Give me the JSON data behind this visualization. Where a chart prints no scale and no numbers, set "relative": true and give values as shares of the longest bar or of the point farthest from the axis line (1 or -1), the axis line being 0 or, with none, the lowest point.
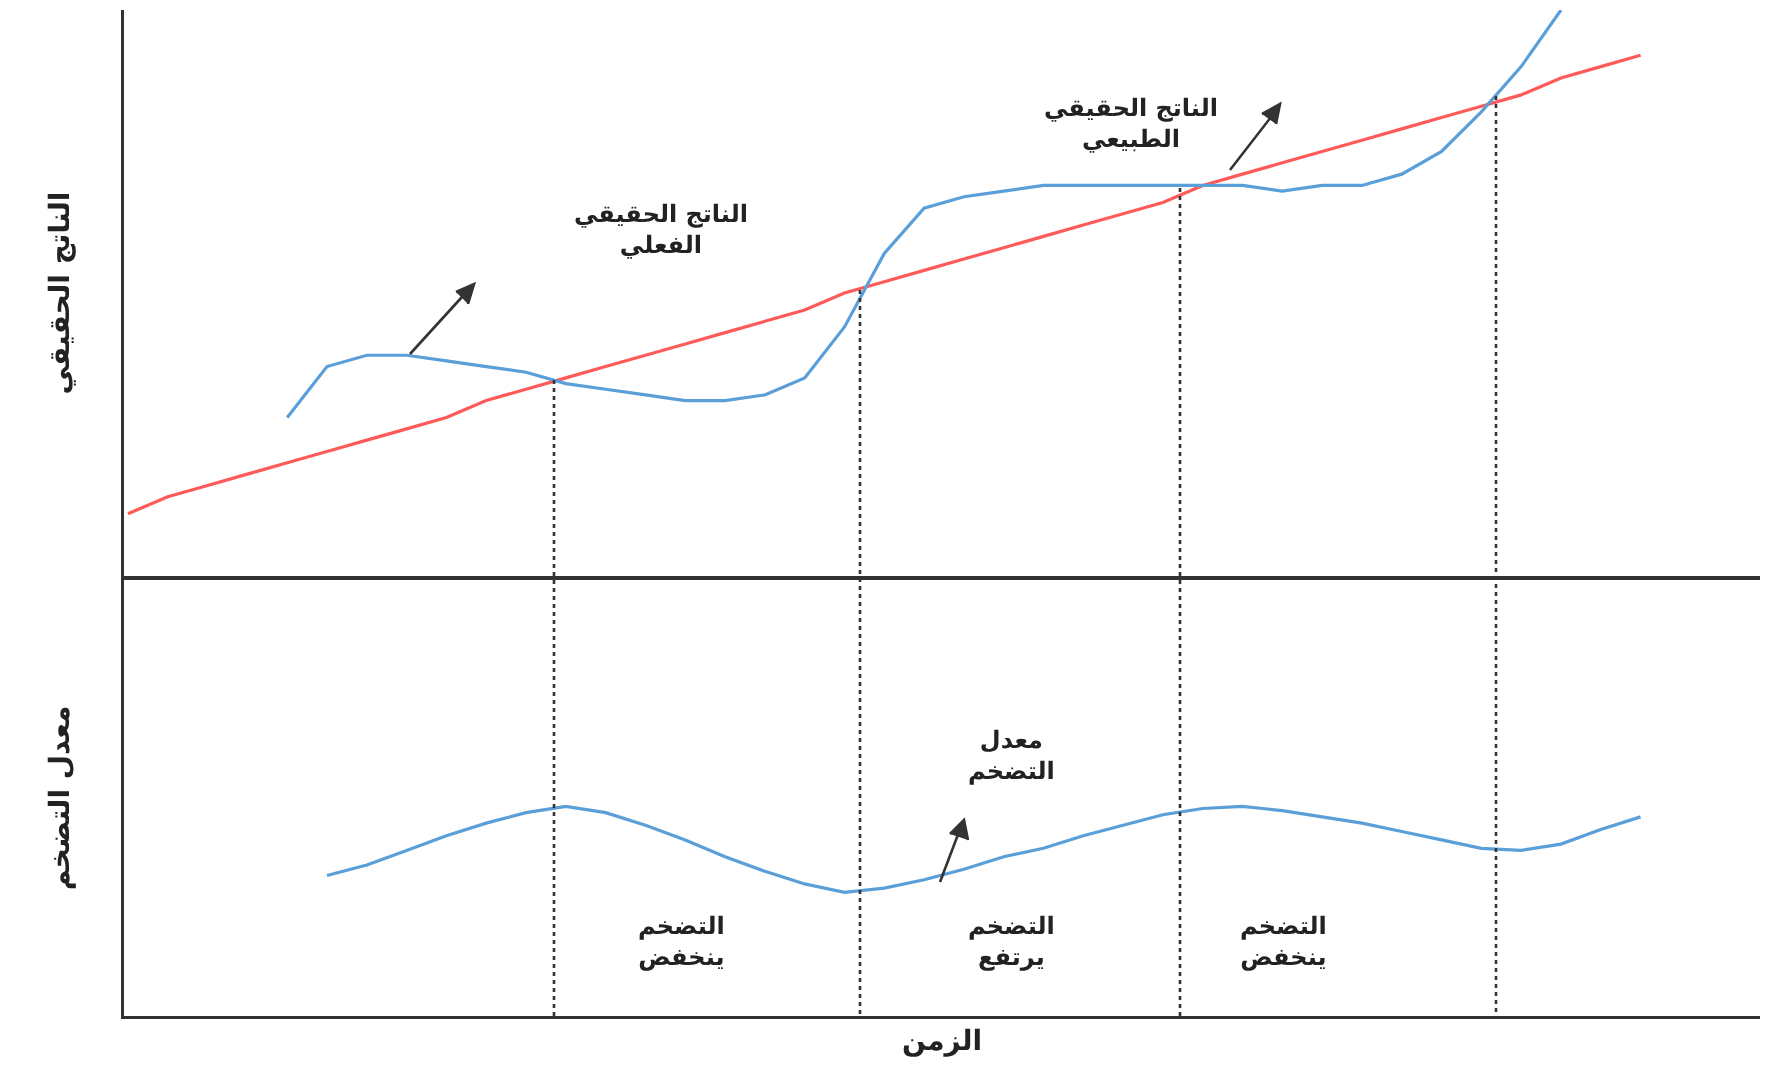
{
  "chart_data": [
    {
      "type": "line",
      "relative": true,
      "ylabel": "الناتج الحقيقي",
      "categories": [
        null,
        null,
        null,
        null,
        null,
        null,
        null,
        null,
        null,
        null,
        null,
        null,
        null,
        null,
        null,
        null,
        null,
        null,
        null,
        null,
        null,
        null,
        null,
        null,
        null,
        null,
        null,
        null,
        null,
        null,
        null,
        null,
        null,
        null,
        null,
        null,
        null,
        null,
        null
      ],
      "series": [
        {
          "color": "#ff5a5a",
          "values": [
            0.11,
            0.14,
            0.16,
            0.18,
            0.2,
            0.22,
            0.24,
            0.26,
            0.28,
            0.31,
            0.33,
            0.35,
            0.37,
            0.39,
            0.41,
            0.43,
            0.45,
            0.47,
            0.5,
            0.52,
            0.54,
            0.56,
            0.58,
            0.6,
            0.62,
            0.64,
            0.66,
            0.69,
            0.71,
            0.73,
            0.75,
            0.77,
            0.79,
            0.81,
            0.83,
            0.85,
            0.88,
            0.9,
            0.92
          ]
        },
        {
          "color": "#5a9fd8",
          "values": [
            null,
            null,
            null,
            null,
            0.28,
            0.37,
            0.39,
            0.39,
            0.38,
            0.37,
            0.36,
            0.34,
            0.33,
            0.32,
            0.31,
            0.31,
            0.32,
            0.35,
            0.44,
            0.57,
            0.65,
            0.67,
            0.68,
            0.69,
            0.69,
            0.69,
            0.69,
            0.69,
            0.69,
            0.68,
            0.69,
            0.69,
            0.71,
            0.75,
            0.82,
            0.9,
            1,
            null,
            null
          ]
        }
      ],
      "annotations": [
        "الناتج الحقيقي\nالفعلي",
        "الناتج الحقيقي\nالطبيعي"
      ]
    },
    {
      "type": "line",
      "relative": true,
      "ylabel": "معدل التضخم",
      "xlabel": "الزمن",
      "categories": [
        null,
        null,
        null,
        null,
        null,
        null,
        null,
        null,
        null,
        null,
        null,
        null,
        null,
        null,
        null,
        null,
        null,
        null,
        null,
        null,
        null,
        null,
        null,
        null,
        null,
        null,
        null,
        null,
        null,
        null,
        null,
        null,
        null,
        null,
        null,
        null,
        null,
        null,
        null
      ],
      "series": [
        {
          "color": "#5a9fd8",
          "values": [
            null,
            null,
            null,
            null,
            null,
            0.67,
            0.72,
            0.79,
            0.86,
            0.92,
            0.97,
            1,
            0.97,
            0.91,
            0.84,
            0.76,
            0.69,
            0.63,
            0.59,
            0.61,
            0.65,
            0.7,
            0.76,
            0.8,
            0.86,
            0.91,
            0.96,
            0.99,
            1,
            0.98,
            0.95,
            0.92,
            0.88,
            0.84,
            0.8,
            0.79,
            0.82,
            0.89,
            0.95
          ]
        }
      ],
      "annotations": [
        "معدل\nالتضخم",
        "التضخم\nينخفض",
        "التضخم\nيرتفع",
        "التضخم\nينخفض"
      ]
    }
  ]
}
